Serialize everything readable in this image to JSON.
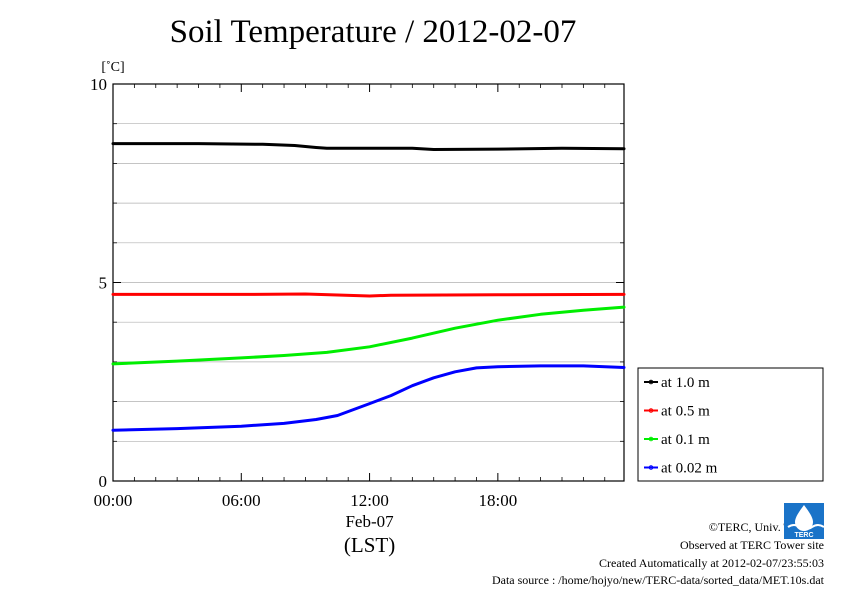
{
  "chart_data": {
    "type": "line",
    "title": "Soil Temperature / 2012-02-07",
    "y_unit": "[˚C]",
    "ylim": [
      0,
      10
    ],
    "y_ticks": [
      "0",
      "5",
      "10"
    ],
    "xlim_hours": [
      0,
      23.9
    ],
    "x_ticks": [
      "00:00",
      "06:00",
      "12:00",
      "18:00"
    ],
    "x_date_label": "Feb-07",
    "x_axis_label": "(LST)",
    "grid": true,
    "legend_position": "right",
    "series": [
      {
        "name": "at 1.0 m",
        "color": "#000000",
        "points": [
          [
            0,
            8.5
          ],
          [
            4,
            8.5
          ],
          [
            7,
            8.48
          ],
          [
            8.5,
            8.45
          ],
          [
            9.5,
            8.4
          ],
          [
            10,
            8.38
          ],
          [
            12,
            8.38
          ],
          [
            14,
            8.38
          ],
          [
            15,
            8.35
          ],
          [
            18,
            8.36
          ],
          [
            21,
            8.38
          ],
          [
            23.9,
            8.37
          ]
        ]
      },
      {
        "name": "at 0.5 m",
        "color": "#ff0000",
        "points": [
          [
            0,
            4.7
          ],
          [
            6,
            4.7
          ],
          [
            9,
            4.71
          ],
          [
            12,
            4.66
          ],
          [
            13,
            4.68
          ],
          [
            18,
            4.69
          ],
          [
            23.9,
            4.7
          ]
        ]
      },
      {
        "name": "at 0.1 m",
        "color": "#00ee00",
        "points": [
          [
            0,
            2.95
          ],
          [
            3,
            3.02
          ],
          [
            6,
            3.1
          ],
          [
            8,
            3.16
          ],
          [
            10,
            3.24
          ],
          [
            12,
            3.38
          ],
          [
            14,
            3.6
          ],
          [
            16,
            3.85
          ],
          [
            18,
            4.05
          ],
          [
            20,
            4.2
          ],
          [
            22,
            4.3
          ],
          [
            23.9,
            4.38
          ]
        ]
      },
      {
        "name": "at 0.02 m",
        "color": "#0000ff",
        "points": [
          [
            0,
            1.28
          ],
          [
            3,
            1.32
          ],
          [
            6,
            1.38
          ],
          [
            8,
            1.45
          ],
          [
            9.5,
            1.55
          ],
          [
            10.5,
            1.65
          ],
          [
            12,
            1.95
          ],
          [
            13,
            2.15
          ],
          [
            14,
            2.4
          ],
          [
            15,
            2.6
          ],
          [
            16,
            2.75
          ],
          [
            17,
            2.85
          ],
          [
            18,
            2.88
          ],
          [
            20,
            2.9
          ],
          [
            22,
            2.9
          ],
          [
            23.9,
            2.86
          ]
        ]
      }
    ]
  },
  "footer": {
    "copyright": "©TERC, Univ. Tsukuba",
    "observed": "Observed at TERC Tower site",
    "created": "Created Automatically at 2012-02-07/23:55:03",
    "source": "Data source : /home/hojyo/new/TERC-data/sorted_data/MET.10s.dat"
  },
  "logo": {
    "text": "TERC",
    "color": "#1a73c8"
  }
}
